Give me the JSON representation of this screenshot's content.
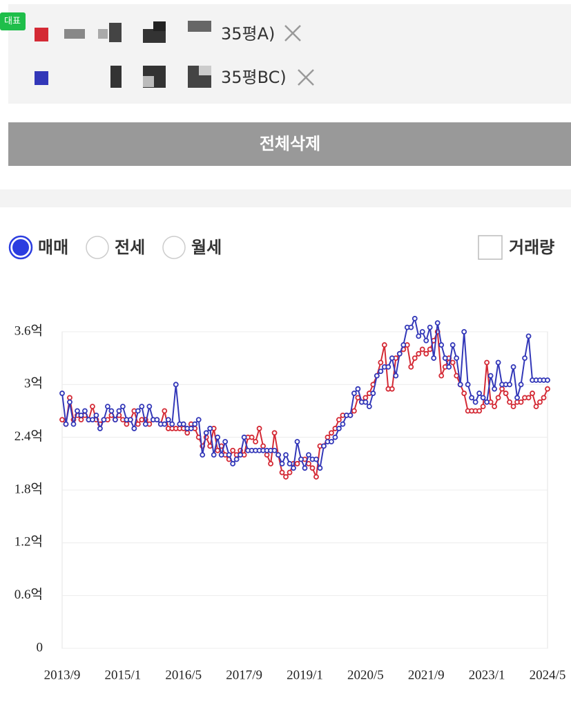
{
  "badge": "대표",
  "button": "전체삭제",
  "tabs": {
    "options": [
      "매매",
      "전세",
      "월세"
    ],
    "selected": 0
  },
  "checkbox": {
    "label": "거래량",
    "checked": false
  },
  "chart_data": {
    "type": "line",
    "x": [
      "2013/9",
      null,
      null,
      null,
      null,
      null,
      null,
      null,
      null,
      null,
      null,
      null,
      null,
      null,
      null,
      null,
      "2015/1",
      null,
      null,
      null,
      null,
      null,
      null,
      null,
      null,
      null,
      null,
      null,
      null,
      null,
      null,
      null,
      "2016/5",
      null,
      null,
      null,
      null,
      null,
      null,
      null,
      null,
      null,
      null,
      null,
      null,
      null,
      null,
      null,
      "2017/9",
      null,
      null,
      null,
      null,
      null,
      null,
      null,
      null,
      null,
      null,
      null,
      null,
      null,
      null,
      null,
      "2019/1",
      null,
      null,
      null,
      null,
      null,
      null,
      null,
      null,
      null,
      null,
      null,
      null,
      null,
      null,
      null,
      "2020/5",
      null,
      null,
      null,
      null,
      null,
      null,
      null,
      null,
      null,
      null,
      null,
      null,
      null,
      null,
      null,
      "2021/9",
      null,
      null,
      null,
      null,
      null,
      null,
      null,
      null,
      null,
      null,
      null,
      null,
      null,
      null,
      null,
      "2023/1",
      null,
      null,
      null,
      null,
      null,
      null,
      null,
      null,
      null,
      null,
      null,
      null,
      null,
      null,
      null,
      "2024/5"
    ],
    "series": [
      {
        "name": "35평A)",
        "color": "#d42a35",
        "values": [
          2.6,
          2.55,
          2.85,
          2.6,
          2.65,
          2.6,
          2.65,
          2.6,
          2.75,
          2.6,
          2.55,
          2.6,
          2.6,
          2.65,
          2.6,
          2.65,
          2.6,
          2.55,
          2.6,
          2.7,
          2.55,
          2.6,
          2.6,
          2.55,
          2.6,
          2.6,
          2.55,
          2.7,
          2.5,
          2.5,
          2.5,
          2.5,
          2.5,
          2.45,
          2.55,
          2.5,
          2.4,
          2.3,
          2.4,
          2.3,
          2.5,
          2.25,
          2.3,
          2.2,
          2.15,
          2.25,
          2.2,
          2.25,
          2.2,
          2.4,
          2.4,
          2.35,
          2.5,
          2.3,
          2.2,
          2.1,
          2.45,
          2.2,
          2.0,
          1.95,
          2.0,
          2.1,
          2.1,
          2.15,
          2.15,
          2.1,
          2.05,
          1.95,
          2.3,
          2.3,
          2.4,
          2.45,
          2.5,
          2.6,
          2.65,
          2.65,
          2.65,
          2.7,
          2.85,
          2.8,
          2.85,
          2.9,
          3.0,
          3.1,
          3.25,
          3.45,
          2.95,
          2.95,
          3.3,
          3.35,
          3.4,
          3.45,
          3.2,
          3.3,
          3.35,
          3.4,
          3.35,
          3.4,
          3.5,
          3.6,
          3.1,
          3.2,
          3.3,
          3.25,
          3.1,
          3.0,
          2.9,
          2.7,
          2.7,
          2.7,
          2.7,
          2.75,
          3.25,
          2.8,
          2.75,
          2.85,
          2.95,
          2.9,
          2.8,
          2.75,
          2.8,
          2.8,
          2.85,
          2.85,
          2.9,
          2.75,
          2.8,
          2.85,
          2.95
        ]
      },
      {
        "name": "35평BC)",
        "color": "#3237b8",
        "values": [
          2.9,
          2.55,
          2.8,
          2.55,
          2.7,
          2.65,
          2.7,
          2.6,
          2.6,
          2.65,
          2.5,
          2.6,
          2.75,
          2.7,
          2.6,
          2.7,
          2.75,
          2.6,
          2.6,
          2.5,
          2.7,
          2.75,
          2.55,
          2.75,
          2.6,
          2.6,
          2.55,
          2.55,
          2.6,
          2.55,
          3.0,
          2.55,
          2.55,
          2.5,
          2.5,
          2.55,
          2.6,
          2.2,
          2.45,
          2.5,
          2.2,
          2.4,
          2.2,
          2.35,
          2.2,
          2.1,
          2.15,
          2.2,
          2.4,
          2.25,
          2.25,
          2.25,
          2.25,
          2.25,
          2.25,
          2.25,
          2.25,
          2.2,
          2.1,
          2.2,
          2.1,
          2.05,
          2.35,
          2.15,
          2.05,
          2.2,
          2.15,
          2.15,
          2.05,
          2.3,
          2.35,
          2.35,
          2.4,
          2.5,
          2.55,
          2.65,
          2.65,
          2.9,
          2.95,
          2.8,
          2.8,
          2.75,
          2.9,
          3.1,
          3.15,
          3.2,
          3.2,
          3.3,
          3.1,
          3.35,
          3.45,
          3.65,
          3.65,
          3.75,
          3.55,
          3.6,
          3.5,
          3.65,
          3.3,
          3.7,
          3.45,
          3.3,
          3.2,
          3.45,
          3.3,
          3.0,
          3.6,
          3.0,
          2.85,
          2.8,
          2.9,
          2.85,
          2.8,
          3.1,
          2.95,
          3.25,
          3.0,
          3.0,
          3.0,
          3.2,
          2.85,
          3.0,
          3.3,
          3.55,
          3.05,
          3.05,
          3.05,
          3.05,
          3.05
        ]
      }
    ],
    "ylim": [
      0,
      3.6
    ],
    "yticks": [
      0,
      {
        "value": 0.6,
        "label": "0.6억"
      },
      {
        "value": 1.2,
        "label": "1.2억"
      },
      {
        "value": 1.8,
        "label": "1.8억"
      },
      {
        "value": 2.4,
        "label": "2.4억"
      },
      {
        "value": 3,
        "label": "3억"
      },
      {
        "value": 3.6,
        "label": "3.6억"
      }
    ],
    "grid": true
  }
}
